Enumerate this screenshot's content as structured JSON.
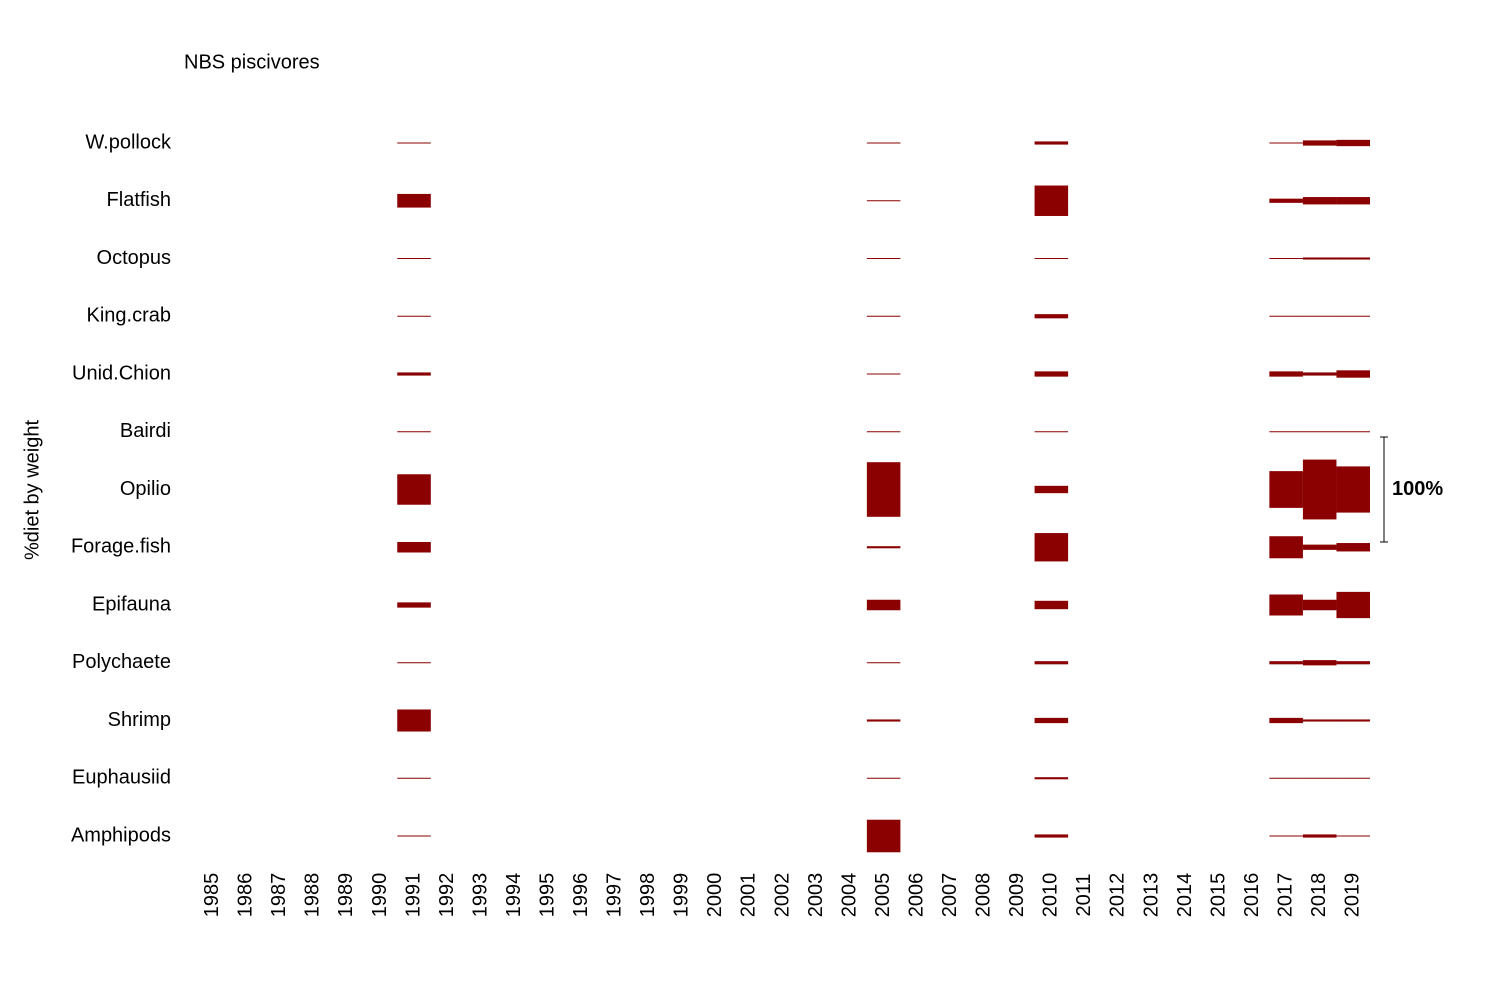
{
  "chart_data": {
    "type": "kite",
    "title": "NBS piscivores",
    "ylabel": "%diet by weight",
    "color": "#8b0000",
    "categories": [
      "W.pollock",
      "Flatfish",
      "Octopus",
      "King.crab",
      "Unid.Chion",
      "Bairdi",
      "Opilio",
      "Forage.fish",
      "Epifauna",
      "Polychaete",
      "Shrimp",
      "Euphausiid",
      "Amphipods"
    ],
    "x": [
      1991,
      2005,
      2010,
      2017,
      2018,
      2019
    ],
    "xlim": [
      1984.5,
      2019.5
    ],
    "xticks": [
      1985,
      1986,
      1987,
      1988,
      1989,
      1990,
      1991,
      1992,
      1993,
      1994,
      1995,
      1996,
      1997,
      1998,
      1999,
      2000,
      2001,
      2002,
      2003,
      2004,
      2005,
      2006,
      2007,
      2008,
      2009,
      2010,
      2011,
      2012,
      2013,
      2014,
      2015,
      2016,
      2017,
      2018,
      2019
    ],
    "series": [
      {
        "values": [
          0,
          0,
          3,
          0,
          5,
          6
        ]
      },
      {
        "values": [
          13,
          0,
          29,
          4,
          7,
          7
        ]
      },
      {
        "values": [
          0,
          0,
          0,
          0,
          2,
          2
        ]
      },
      {
        "values": [
          0,
          0,
          4,
          0,
          0,
          0
        ]
      },
      {
        "values": [
          3,
          0,
          5,
          5,
          3,
          7
        ]
      },
      {
        "values": [
          0,
          0,
          0,
          0,
          0,
          0
        ]
      },
      {
        "values": [
          29,
          52,
          7,
          35,
          57,
          44
        ]
      },
      {
        "values": [
          10,
          2,
          27,
          21,
          5,
          8
        ]
      },
      {
        "values": [
          5,
          10,
          8,
          20,
          10,
          25
        ]
      },
      {
        "values": [
          0,
          0,
          3,
          3,
          5,
          3
        ]
      },
      {
        "values": [
          21,
          2,
          5,
          5,
          2,
          2
        ]
      },
      {
        "values": [
          0,
          0,
          2,
          0,
          0,
          0
        ]
      },
      {
        "values": [
          0,
          31,
          3,
          0,
          3,
          0
        ]
      }
    ],
    "scale_bar": {
      "value": 100,
      "label": "100%"
    }
  }
}
